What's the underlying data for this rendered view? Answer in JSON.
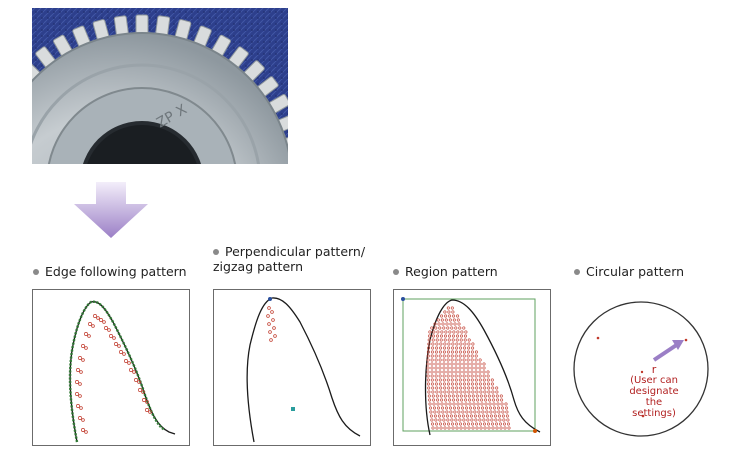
{
  "photo": {
    "subject": "gear-photo",
    "engraving": "ZP X"
  },
  "patterns": [
    {
      "label": "Edge following pattern"
    },
    {
      "label_line1": "Perpendicular pattern/",
      "label_line2": "zigzag pattern"
    },
    {
      "label": "Region pattern"
    },
    {
      "label": "Circular pattern"
    }
  ],
  "circular": {
    "r_label": "r",
    "note_line1": "(User can",
    "note_line2": "designate",
    "note_line3": "the settings)"
  },
  "colors": {
    "accent_red": "#c0392b",
    "edge_green": "#2e7d32",
    "arrow_purple": "#9b7fc6",
    "teal": "#2a9d9d"
  }
}
